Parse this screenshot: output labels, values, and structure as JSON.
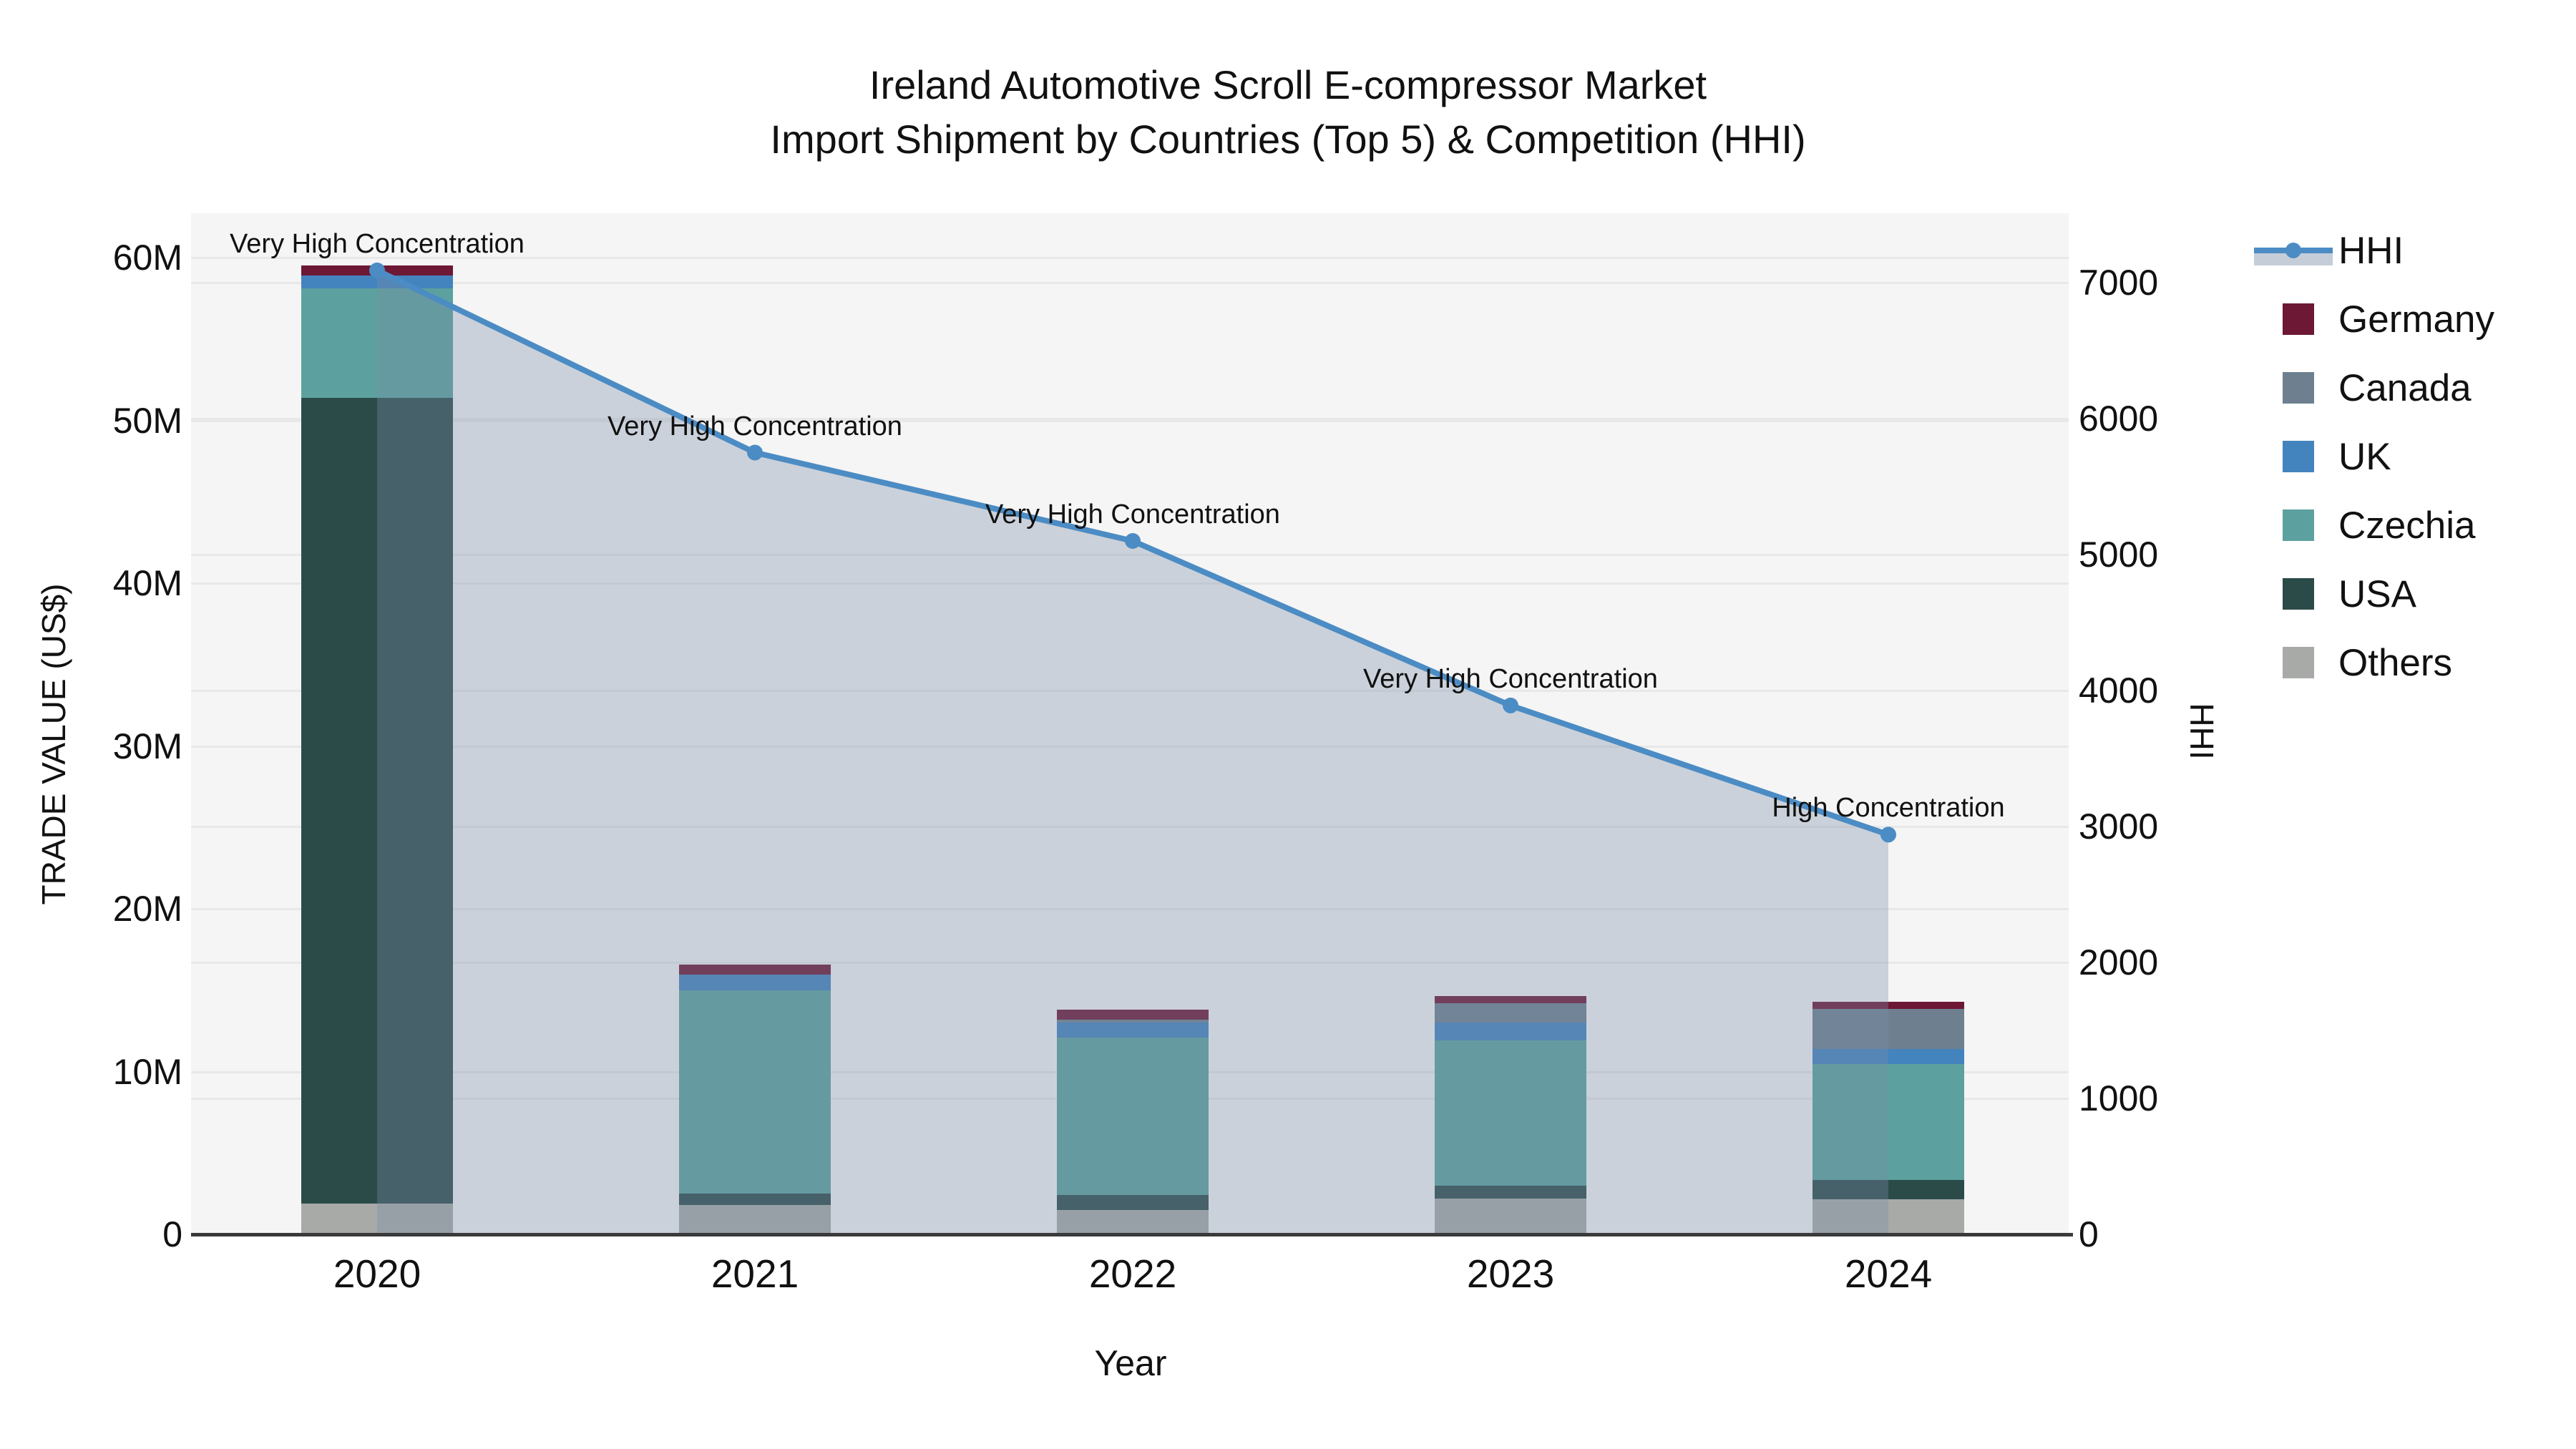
{
  "title": {
    "line1": "Ireland Automotive Scroll E-compressor Market",
    "line2": "Import Shipment by Countries (Top 5) & Competition (HHI)"
  },
  "axes": {
    "left": {
      "title": "TRADE VALUE (US$)",
      "ticks": [
        "0",
        "10M",
        "20M",
        "30M",
        "40M",
        "50M",
        "60M"
      ],
      "tick_values": [
        0,
        10,
        20,
        30,
        40,
        50,
        60
      ],
      "unit": "M US$",
      "range": [
        0,
        60
      ]
    },
    "right": {
      "title": "HHI",
      "ticks": [
        "0",
        "1000",
        "2000",
        "3000",
        "4000",
        "5000",
        "6000",
        "7000"
      ],
      "tick_values": [
        0,
        1000,
        2000,
        3000,
        4000,
        5000,
        6000,
        7000
      ],
      "range": [
        0,
        7000
      ]
    },
    "x": {
      "title": "Year",
      "categories": [
        "2020",
        "2021",
        "2022",
        "2023",
        "2024"
      ]
    }
  },
  "legend": [
    {
      "label": "HHI",
      "type": "line",
      "color": "#4C8CC4"
    },
    {
      "label": "Germany",
      "type": "box",
      "color": "#6D1834"
    },
    {
      "label": "Canada",
      "type": "box",
      "color": "#6E808F"
    },
    {
      "label": "UK",
      "type": "box",
      "color": "#4383BE"
    },
    {
      "label": "Czechia",
      "type": "box",
      "color": "#5CA19F"
    },
    {
      "label": "USA",
      "type": "box",
      "color": "#2B4B49"
    },
    {
      "label": "Others",
      "type": "box",
      "color": "#A8AAA8"
    }
  ],
  "chart_data": {
    "type": "combo-stacked-bar-with-area-line",
    "categories": [
      "2020",
      "2021",
      "2022",
      "2023",
      "2024"
    ],
    "bar_unit": "million US$",
    "stack_order_bottom_to_top": [
      "Others",
      "USA",
      "Czechia",
      "UK",
      "Canada",
      "Germany"
    ],
    "series": [
      {
        "name": "Others",
        "color": "#A8AAA8",
        "values": [
          1.9,
          1.8,
          1.5,
          2.2,
          2.15
        ]
      },
      {
        "name": "USA",
        "color": "#2B4B49",
        "values": [
          49.5,
          0.7,
          0.9,
          0.8,
          1.2
        ]
      },
      {
        "name": "Czechia",
        "color": "#5CA19F",
        "values": [
          6.7,
          12.5,
          9.7,
          8.9,
          7.1
        ]
      },
      {
        "name": "UK",
        "color": "#4383BE",
        "values": [
          0.8,
          0.95,
          0.9,
          1.1,
          0.95
        ]
      },
      {
        "name": "Canada",
        "color": "#6E808F",
        "values": [
          0.0,
          0.0,
          0.2,
          1.2,
          2.45
        ]
      },
      {
        "name": "Germany",
        "color": "#6D1834",
        "values": [
          0.6,
          0.6,
          0.6,
          0.45,
          0.45
        ]
      }
    ],
    "bar_totals": [
      59.5,
      16.55,
      13.8,
      14.65,
      14.3
    ],
    "hhi": {
      "name": "HHI",
      "values": [
        7090,
        5750,
        5100,
        3890,
        2940
      ],
      "line_color": "#4C8CC4",
      "area_color": "#7C8EA6",
      "area_opacity": 0.34
    },
    "annotations": [
      {
        "category": "2020",
        "text": "Very High Concentration"
      },
      {
        "category": "2021",
        "text": "Very High Concentration"
      },
      {
        "category": "2022",
        "text": "Very High Concentration"
      },
      {
        "category": "2023",
        "text": "Very High Concentration"
      },
      {
        "category": "2024",
        "text": "High Concentration"
      }
    ],
    "colors": {
      "plot_bg": "#F5F5F5",
      "grid": "#E8E8E8",
      "axis_line": "#3A3A3A"
    },
    "grid": true,
    "legend_position": "right"
  }
}
